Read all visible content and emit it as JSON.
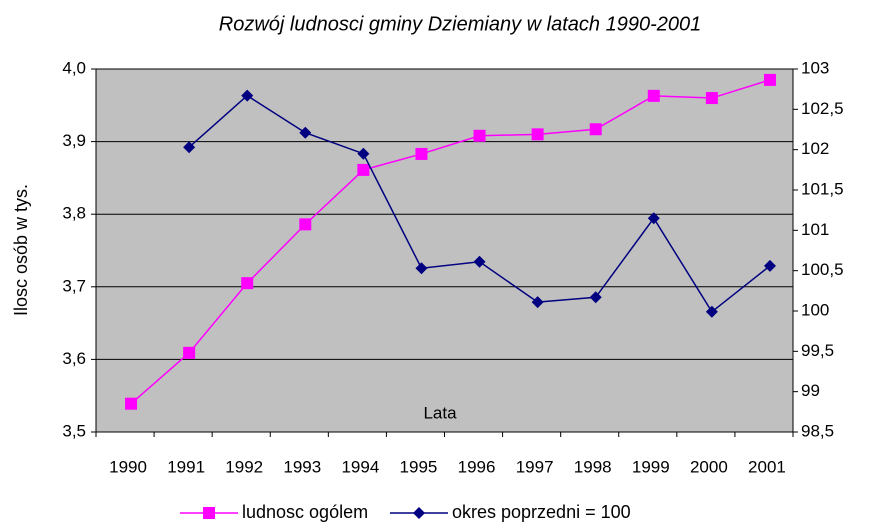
{
  "chart_data": {
    "type": "line",
    "title": "Rozwój ludnosci gminy Dziemiany w latach 1990-2001",
    "x_label": "Lata",
    "y_label": "Ilosc osób w tys.",
    "categories": [
      "1990",
      "1991",
      "1992",
      "1993",
      "1994",
      "1995",
      "1996",
      "1997",
      "1998",
      "1999",
      "2000",
      "2001"
    ],
    "series": [
      {
        "name": "ludnosc ogólem",
        "color": "#ff00ff",
        "marker": "square",
        "axis": "y",
        "values": [
          3.539,
          3.609,
          3.705,
          3.786,
          3.861,
          3.883,
          3.908,
          3.91,
          3.917,
          3.963,
          3.96,
          3.985
        ]
      },
      {
        "name": "okres poprzedni = 100",
        "color": "#000080",
        "marker": "diamond",
        "axis": "y2",
        "values": [
          null,
          102.03,
          102.67,
          102.21,
          101.95,
          100.53,
          100.61,
          100.11,
          100.17,
          101.15,
          99.99,
          100.56
        ]
      }
    ],
    "ylim": [
      3.5,
      4.0
    ],
    "yticks": [
      {
        "value": 3.5,
        "label": "3,5"
      },
      {
        "value": 3.6,
        "label": "3,6"
      },
      {
        "value": 3.7,
        "label": "3,7"
      },
      {
        "value": 3.8,
        "label": "3,8"
      },
      {
        "value": 3.9,
        "label": "3,9"
      },
      {
        "value": 4.0,
        "label": "4,0"
      }
    ],
    "y2lim": [
      98.5,
      103
    ],
    "y2ticks": [
      {
        "value": 98.5,
        "label": "98,5"
      },
      99,
      {
        "value": 99.5,
        "label": "99,5"
      },
      100,
      {
        "value": 100.5,
        "label": "100,5"
      },
      101,
      {
        "value": 101.5,
        "label": "101,5"
      },
      102,
      {
        "value": 102.5,
        "label": "102,5"
      },
      103
    ],
    "grid": true,
    "legend": "bottom",
    "plot_background": "#c0c0c0"
  }
}
